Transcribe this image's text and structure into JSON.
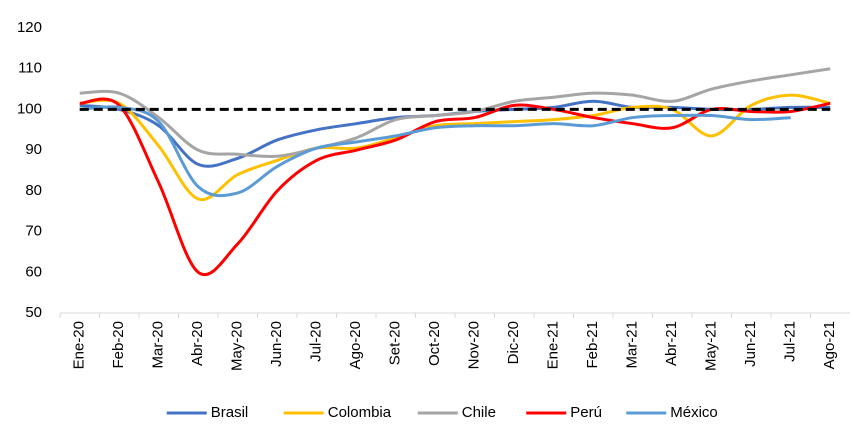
{
  "chart_data": {
    "type": "line",
    "categories": [
      "Ene-20",
      "Feb-20",
      "Mar-20",
      "Abr-20",
      "May-20",
      "Jun-20",
      "Jul-20",
      "Ago-20",
      "Set-20",
      "Oct-20",
      "Nov-20",
      "Dic-20",
      "Ene-21",
      "Feb-21",
      "Mar-21",
      "Abr-21",
      "May-21",
      "Jun-21",
      "Jul-21",
      "Ago-21"
    ],
    "series": [
      {
        "name": "Brasil",
        "color": "#4472c4",
        "values": [
          101,
          100,
          96,
          86.5,
          88,
          92.5,
          95,
          96.5,
          98,
          98.5,
          99.5,
          100,
          100.5,
          102,
          100.5,
          100.5,
          100,
          100,
          100.5,
          100.5
        ]
      },
      {
        "name": "Colombia",
        "color": "#ffc000",
        "values": [
          101.5,
          101.5,
          91,
          78,
          84,
          87.5,
          90.5,
          90.5,
          93,
          96,
          96.5,
          97,
          97.5,
          98.5,
          100.5,
          100,
          93.5,
          101,
          103.5,
          101.5
        ]
      },
      {
        "name": "Chile",
        "color": "#a5a5a5",
        "values": [
          104,
          104,
          98,
          90,
          89,
          88.5,
          90.5,
          93,
          97.5,
          98.5,
          99.5,
          102,
          103,
          104,
          103.5,
          102,
          105,
          107,
          108.5,
          110
        ]
      },
      {
        "name": "Perú",
        "color": "#ff0000",
        "values": [
          101.5,
          101,
          82,
          60,
          67,
          80,
          87.5,
          90,
          92.5,
          97,
          98,
          101,
          100,
          98,
          96.5,
          95.5,
          100,
          99.5,
          99.5,
          101.5
        ]
      },
      {
        "name": "México",
        "color": "#5b9bd5",
        "values": [
          100,
          100.5,
          97,
          81,
          79.5,
          86,
          90.5,
          92,
          93.5,
          95.5,
          96,
          96,
          96.5,
          96,
          98,
          98.5,
          98.5,
          97.5,
          98,
          null
        ]
      }
    ],
    "reference_line": {
      "value": 100,
      "color": "#000000",
      "dashed": true
    },
    "ylim": [
      50,
      120
    ],
    "yticks": [
      50,
      60,
      70,
      80,
      90,
      100,
      110,
      120
    ],
    "smooth": true,
    "legend": "bottom"
  }
}
